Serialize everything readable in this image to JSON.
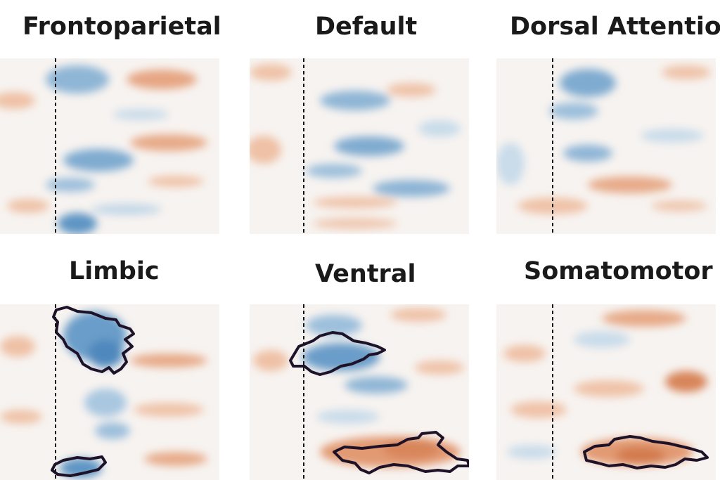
{
  "colors": {
    "negative": "#3b7ab5",
    "positive": "#d9825a",
    "neutral": "#f7f3f0",
    "contour": "#1e1228",
    "marker_line": "#111111"
  },
  "panels": [
    {
      "title": "Frontoparietal"
    },
    {
      "title": "Default"
    },
    {
      "title": "Dorsal Attention"
    },
    {
      "title": "Limbic"
    },
    {
      "title": "Ventral"
    },
    {
      "title": "Somatomotor"
    }
  ]
}
